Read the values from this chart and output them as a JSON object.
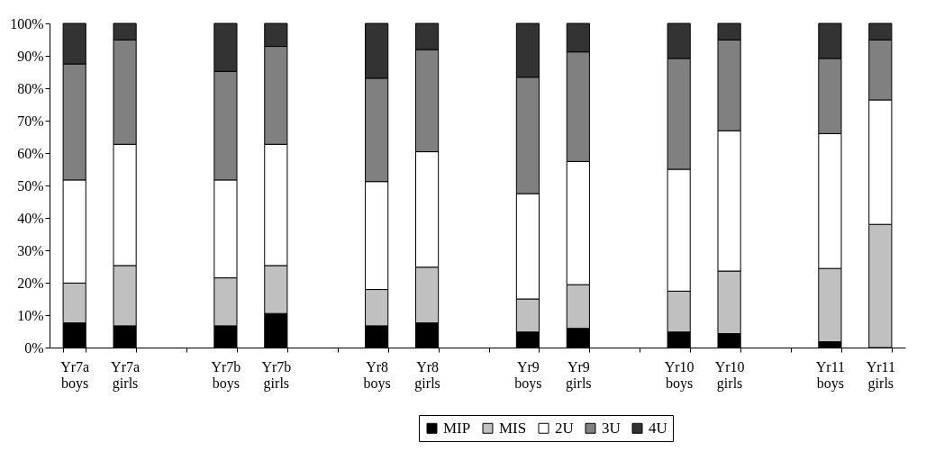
{
  "chart_data": {
    "type": "bar",
    "stacked": true,
    "categories": [
      "Yr7a boys",
      "Yr7a girls",
      null,
      "Yr7b boys",
      "Yr7b girls",
      null,
      "Yr8 boys",
      "Yr8 girls",
      null,
      "Yr9 boys",
      "Yr9 girls",
      null,
      "Yr10 boys",
      "Yr10 girls",
      null,
      "Yr11 boys",
      "Yr11 girls"
    ],
    "series": [
      {
        "name": "MIP",
        "color": "#000000",
        "values": [
          7.6,
          6.7,
          null,
          6.7,
          10.5,
          null,
          6.7,
          7.6,
          null,
          4.8,
          5.9,
          null,
          4.8,
          4.3,
          null,
          1.8,
          0
        ]
      },
      {
        "name": "MIS",
        "color": "#c0c0c0",
        "values": [
          12.3,
          18.6,
          null,
          14.8,
          14.8,
          null,
          11.2,
          17.2,
          null,
          10.2,
          13.5,
          null,
          12.6,
          19.3,
          null,
          22.6,
          38.0
        ]
      },
      {
        "name": "2U",
        "color": "#ffffff",
        "values": [
          31.8,
          37.4,
          null,
          30.2,
          37.4,
          null,
          33.3,
          35.6,
          null,
          32.5,
          38.0,
          null,
          37.6,
          43.3,
          null,
          41.6,
          38.4
        ]
      },
      {
        "name": "3U",
        "color": "#808080",
        "values": [
          35.8,
          32.2,
          null,
          33.5,
          30.2,
          null,
          31.9,
          31.5,
          null,
          35.9,
          33.8,
          null,
          34.2,
          28.0,
          null,
          23.2,
          18.5
        ]
      },
      {
        "name": "4U",
        "color": "#333333",
        "values": [
          12.5,
          5.1,
          null,
          14.8,
          7.1,
          null,
          16.9,
          8.1,
          null,
          16.6,
          8.8,
          null,
          10.8,
          5.1,
          null,
          10.8,
          5.1
        ]
      }
    ],
    "ylim": [
      0,
      100
    ],
    "yticks": [
      {
        "value": 0,
        "label": "0%"
      },
      {
        "value": 10,
        "label": "10%"
      },
      {
        "value": 20,
        "label": "20%"
      },
      {
        "value": 30,
        "label": "30%"
      },
      {
        "value": 40,
        "label": "40%"
      },
      {
        "value": 50,
        "label": "50%"
      },
      {
        "value": 60,
        "label": "60%"
      },
      {
        "value": 70,
        "label": "70%"
      },
      {
        "value": 80,
        "label": "80%"
      },
      {
        "value": 90,
        "label": "90%"
      },
      {
        "value": 100,
        "label": "100%"
      }
    ],
    "grid": false,
    "legend": "bottom"
  }
}
